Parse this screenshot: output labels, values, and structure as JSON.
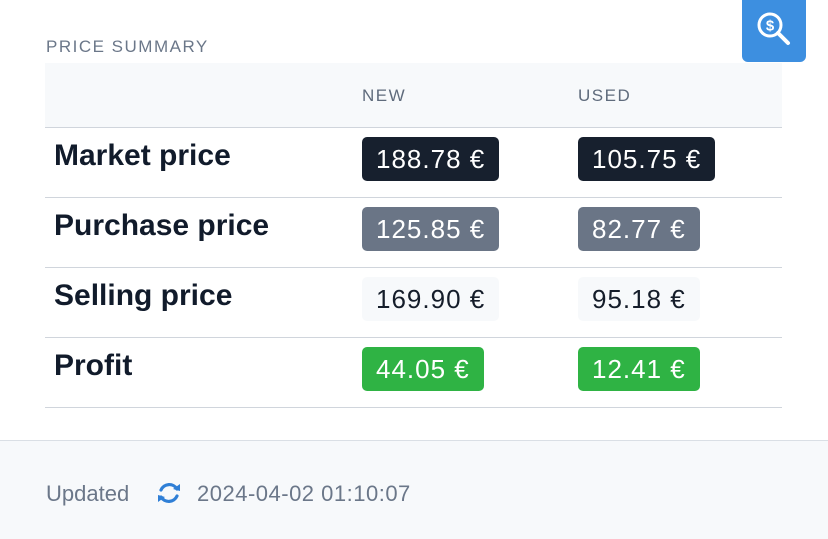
{
  "header": {
    "section_title": "PRICE SUMMARY",
    "search_icon": "search-dollar-icon",
    "accent_color": "#3d8fe0"
  },
  "table": {
    "columns": [
      "",
      "NEW",
      "USED"
    ],
    "rows": [
      {
        "label": "Market price",
        "new": "188.78 €",
        "used": "105.75 €",
        "style": "dark"
      },
      {
        "label": "Purchase price",
        "new": "125.85 €",
        "used": "82.77 €",
        "style": "gray"
      },
      {
        "label": "Selling price",
        "new": "169.90 €",
        "used": "95.18 €",
        "style": "light"
      },
      {
        "label": "Profit",
        "new": "44.05 €",
        "used": "12.41 €",
        "style": "green"
      }
    ]
  },
  "footer": {
    "updated_label": "Updated",
    "refresh_icon": "refresh-icon",
    "timestamp": "2024-04-02 01:10:07"
  }
}
